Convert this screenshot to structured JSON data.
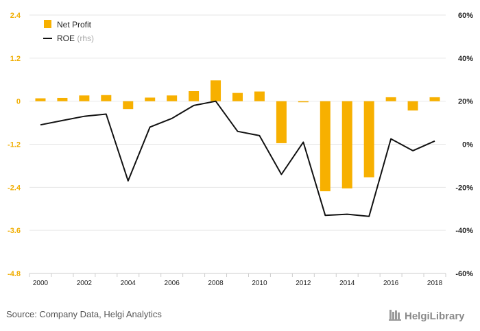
{
  "chart_data": {
    "type": "bar",
    "x": [
      "2000",
      "2001",
      "2002",
      "2003",
      "2004",
      "2005",
      "2006",
      "2007",
      "2008",
      "2009",
      "2010",
      "2011",
      "2012",
      "2013",
      "2014",
      "2015",
      "2016",
      "2017",
      "2018"
    ],
    "x_tick_labels": [
      "2000",
      "2002",
      "2004",
      "2006",
      "2008",
      "2010",
      "2012",
      "2014",
      "2016",
      "2018"
    ],
    "series": [
      {
        "name": "Net Profit",
        "kind": "bar",
        "axis": "left",
        "color": "#f7b000",
        "values": [
          0.08,
          0.09,
          0.16,
          0.17,
          -0.22,
          0.1,
          0.16,
          0.28,
          0.58,
          0.23,
          0.27,
          -1.17,
          -0.03,
          -2.51,
          -2.43,
          -2.12,
          0.11,
          -0.26,
          0.11
        ]
      },
      {
        "name": "ROE",
        "name_suffix": "(rhs)",
        "kind": "line",
        "axis": "right",
        "color": "#111111",
        "values": [
          9,
          11,
          13,
          14,
          -17,
          8,
          12,
          18,
          20,
          6,
          4,
          -14,
          1,
          -33,
          -32.5,
          -33.5,
          2.5,
          -3,
          1.5
        ]
      }
    ],
    "y_left": {
      "ticks": [
        "2.4",
        "1.2",
        "0",
        "-1.2",
        "-2.4",
        "-3.6",
        "-4.8"
      ],
      "range": [
        -4.8,
        2.4
      ]
    },
    "y_right": {
      "ticks": [
        "60%",
        "40%",
        "20%",
        "0%",
        "-20%",
        "-40%",
        "-60%"
      ],
      "range": [
        -60,
        60
      ]
    },
    "grid": true,
    "legend_position": "top-left",
    "source": "Source: Company Data, Helgi Analytics",
    "brand": "HelgiLibrary"
  }
}
